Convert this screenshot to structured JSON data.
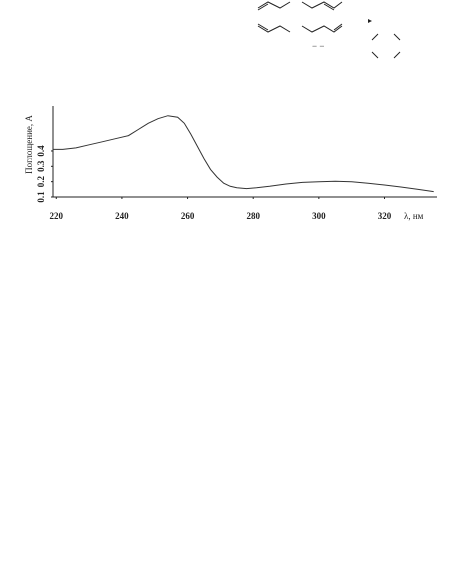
{
  "figure": {
    "structure_glyphs": "−   −",
    "colors": {
      "ink": "#222222",
      "curve": "#333333",
      "background": "#ffffff"
    }
  },
  "chart_data": {
    "type": "line",
    "title": "",
    "xlabel": "λ, нм",
    "ylabel": "Поглощение, A",
    "xlim": [
      219,
      336
    ],
    "ylim": [
      0.1,
      0.68
    ],
    "x_ticks": [
      "220",
      "240",
      "260",
      "280",
      "300",
      "320"
    ],
    "y_ticks": [
      "0.1",
      "0.2",
      "0.3",
      "0.4"
    ],
    "grid": false,
    "legend": "none",
    "series": [
      {
        "x": [
          219,
          222,
          226,
          230,
          234,
          238,
          242,
          245,
          248,
          251,
          254,
          257,
          259,
          261,
          263,
          265,
          267,
          269,
          271,
          273,
          275,
          278,
          281,
          285,
          290,
          295,
          300,
          305,
          310,
          315,
          320,
          325,
          330,
          335
        ],
        "values": [
          0.41,
          0.41,
          0.42,
          0.44,
          0.46,
          0.48,
          0.5,
          0.54,
          0.58,
          0.61,
          0.63,
          0.62,
          0.58,
          0.51,
          0.43,
          0.35,
          0.28,
          0.23,
          0.19,
          0.17,
          0.16,
          0.155,
          0.16,
          0.17,
          0.185,
          0.195,
          0.2,
          0.203,
          0.2,
          0.19,
          0.178,
          0.165,
          0.15,
          0.135
        ]
      }
    ]
  }
}
